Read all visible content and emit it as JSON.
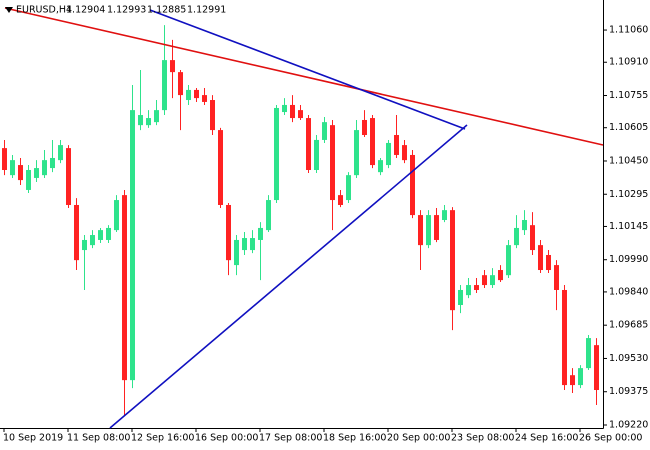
{
  "chart_data": {
    "type": "candlestick",
    "title": "EURUSD,H4",
    "header_values": [
      1.12904,
      1.12993,
      1.12885,
      1.12991
    ],
    "categories": [
      "10 Sep 2019",
      null,
      null,
      null,
      null,
      null,
      null,
      null,
      "11 Sep 08:00",
      null,
      null,
      null,
      null,
      null,
      null,
      null,
      "12 Sep 16:00",
      null,
      null,
      null,
      null,
      null,
      null,
      null,
      "16 Sep 00:00",
      null,
      null,
      null,
      null,
      null,
      null,
      null,
      "17 Sep 08:00",
      null,
      null,
      null,
      null,
      null,
      null,
      null,
      "18 Sep 16:00",
      null,
      null,
      null,
      null,
      null,
      null,
      null,
      "20 Sep 00:00",
      null,
      null,
      null,
      null,
      null,
      null,
      null,
      "23 Sep 08:00",
      null,
      null,
      null,
      null,
      null,
      null,
      null,
      "24 Sep 16:00",
      null,
      null,
      null,
      null,
      null,
      null,
      null,
      "26 Sep 00:00",
      null,
      null
    ],
    "open": [
      1.1051,
      1.10384,
      1.10431,
      1.10315,
      1.10371,
      1.10384,
      1.10417,
      1.10454,
      1.1051,
      1.10245,
      1.10035,
      1.10058,
      1.10082,
      1.10082,
      1.10128,
      1.10291,
      1.09429,
      1.10617,
      1.10617,
      1.10631,
      1.10687,
      1.1092,
      1.10864,
      1.10734,
      1.10781,
      1.10757,
      1.10734,
      1.10594,
      1.10245,
      1.09965,
      1.10035,
      1.10035,
      1.10082,
      1.10128,
      1.10268,
      1.10678,
      1.10711,
      1.10687,
      1.1065,
      1.10408,
      1.10548,
      1.10617,
      1.10291,
      1.10268,
      1.10384,
      1.10641,
      1.1065,
      1.10398,
      1.10431,
      1.10571,
      1.10524,
      1.10478,
      1.10198,
      1.10058,
      1.10198,
      1.10175,
      1.10221,
      1.09779,
      1.09825,
      1.09872,
      1.09918,
      1.09872,
      1.09942,
      1.09918,
      1.10058,
      1.10128,
      1.10151,
      1.10058,
      1.10012,
      1.09965,
      1.09849,
      1.09452,
      1.09406,
      1.09485,
      1.09592
    ],
    "high": [
      1.10548,
      1.10478,
      1.10464,
      1.10431,
      1.10454,
      1.10501,
      1.10548,
      1.10548,
      1.10524,
      1.10277,
      1.10105,
      1.10128,
      1.10138,
      1.10151,
      1.10291,
      1.10315,
      1.10804,
      1.10874,
      1.10687,
      1.10734,
      1.11083,
      1.11014,
      1.10874,
      1.10804,
      1.1079,
      1.1079,
      1.10757,
      1.10604,
      1.10254,
      1.10105,
      1.10119,
      1.10128,
      1.10165,
      1.10291,
      1.10711,
      1.10743,
      1.10757,
      1.10711,
      1.10664,
      1.10571,
      1.10655,
      1.10641,
      1.10315,
      1.10398,
      1.10641,
      1.10687,
      1.10664,
      1.10464,
      1.10548,
      1.10664,
      1.10548,
      1.10501,
      1.10221,
      1.10221,
      1.10231,
      1.10245,
      1.10235,
      1.09872,
      1.09905,
      1.09905,
      1.09942,
      1.09951,
      1.09965,
      1.10082,
      1.10198,
      1.10221,
      1.10212,
      1.10082,
      1.10035,
      1.09988,
      1.09872,
      1.09485,
      1.09499,
      1.09639,
      1.09625
    ],
    "low": [
      1.10384,
      1.10371,
      1.10338,
      1.10301,
      1.10352,
      1.10371,
      1.10398,
      1.1044,
      1.10231,
      1.09942,
      1.09849,
      1.10044,
      1.10068,
      1.10068,
      1.10119,
      1.09266,
      1.09392,
      1.10594,
      1.10604,
      1.10617,
      1.10664,
      1.10743,
      1.10594,
      1.10711,
      1.10725,
      1.10711,
      1.10571,
      1.10231,
      1.09918,
      1.09918,
      1.10012,
      1.10021,
      1.09895,
      1.10119,
      1.10254,
      1.10664,
      1.10631,
      1.10641,
      1.10394,
      1.10394,
      1.10534,
      1.10128,
      1.10235,
      1.10254,
      1.10371,
      1.10562,
      1.10417,
      1.10384,
      1.10417,
      1.10464,
      1.1044,
      1.10184,
      1.09942,
      1.10044,
      1.10072,
      1.10165,
      1.09662,
      1.09741,
      1.09811,
      1.09835,
      1.09858,
      1.09858,
      1.09886,
      1.09905,
      1.10044,
      1.10105,
      1.10012,
      1.09928,
      1.09928,
      1.09755,
      1.09383,
      1.09369,
      1.09392,
      1.09476,
      1.09313
    ],
    "close": [
      1.10408,
      1.10454,
      1.10361,
      1.10408,
      1.10417,
      1.10454,
      1.10464,
      1.10524,
      1.10245,
      1.09988,
      1.10082,
      1.10105,
      1.10128,
      1.10138,
      1.10268,
      1.09429,
      1.10687,
      1.10664,
      1.1065,
      1.10687,
      1.1092,
      1.10864,
      1.10757,
      1.10781,
      1.10743,
      1.10725,
      1.10594,
      1.10245,
      1.09988,
      1.10082,
      1.10091,
      1.10091,
      1.10138,
      1.10268,
      1.10697,
      1.10711,
      1.1065,
      1.1065,
      1.10408,
      1.10548,
      1.10631,
      1.10268,
      1.10245,
      1.10384,
      1.10594,
      1.10571,
      1.10431,
      1.10454,
      1.10534,
      1.10478,
      1.10454,
      1.10198,
      1.10058,
      1.10198,
      1.10082,
      1.10221,
      1.09755,
      1.09849,
      1.09872,
      1.09849,
      1.09872,
      1.09918,
      1.09895,
      1.10058,
      1.10138,
      1.10175,
      1.10035,
      1.09942,
      1.09942,
      1.09849,
      1.09406,
      1.09406,
      1.09485,
      1.09625,
      1.09383
    ],
    "up_color": "#2ee38c",
    "down_color": "#ff2222",
    "ylim": [
      1.09206,
      1.112
    ],
    "yticks": [
      {
        "value": 1.1106,
        "label": "1.11060"
      },
      {
        "value": 1.1091,
        "label": "1.10910"
      },
      1.10755,
      {
        "value": 1.10605,
        "label": "1.10605"
      },
      {
        "value": 1.1045,
        "label": "1.10450"
      },
      1.10295,
      1.10145,
      {
        "value": 1.0999,
        "label": "1.09990"
      },
      {
        "value": 1.0984,
        "label": "1.09840"
      },
      1.09685,
      {
        "value": 1.0953,
        "label": "1.09530"
      },
      1.09375,
      {
        "value": 1.0922,
        "label": "1.09220"
      }
    ]
  }
}
